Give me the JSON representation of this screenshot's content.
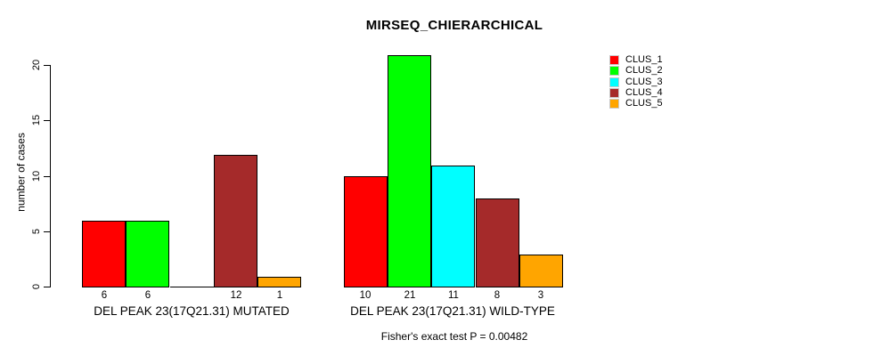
{
  "chart_data": {
    "type": "bar",
    "title": "MIRSEQ_CHIERARCHICAL",
    "ylabel": "number of cases",
    "xlabel": "",
    "ylim": [
      0,
      21
    ],
    "yticks": [
      0,
      5,
      10,
      15,
      20
    ],
    "grid": false,
    "legend_position": "right",
    "annotation": "Fisher's exact test P = 0.00482",
    "legend": [
      {
        "label": "CLUS_1",
        "color": "#ff0000"
      },
      {
        "label": "CLUS_2",
        "color": "#00ff00"
      },
      {
        "label": "CLUS_3",
        "color": "#00ffff"
      },
      {
        "label": "CLUS_4",
        "color": "#a52a2a"
      },
      {
        "label": "CLUS_5",
        "color": "#ffa500"
      }
    ],
    "groups": [
      {
        "label": "DEL PEAK 23(17Q21.31) MUTATED",
        "values": [
          6,
          6,
          0,
          12,
          1
        ],
        "bar_labels": [
          "6",
          "6",
          "",
          "12",
          "1"
        ]
      },
      {
        "label": "DEL PEAK 23(17Q21.31) WILD-TYPE",
        "values": [
          10,
          21,
          11,
          8,
          3
        ],
        "bar_labels": [
          "10",
          "21",
          "11",
          "8",
          "3"
        ]
      }
    ],
    "colors": {
      "background": "#ffffff",
      "axis": "#000000",
      "bar_border": "#000000",
      "text": "#000000"
    }
  }
}
